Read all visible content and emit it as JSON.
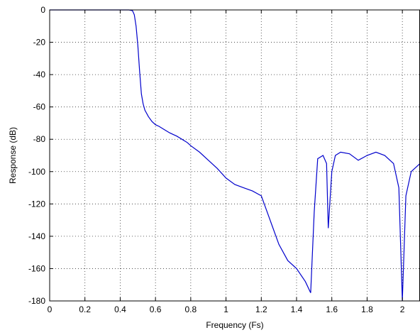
{
  "chart_data": {
    "type": "line",
    "title": "",
    "xlabel": "Frequency (Fs)",
    "ylabel": "Response (dB)",
    "xlim": [
      0,
      2.1
    ],
    "ylim": [
      -180,
      0
    ],
    "x_ticks": [
      0,
      0.2,
      0.4,
      0.6,
      0.8,
      1,
      1.2,
      1.4,
      1.6,
      1.8,
      2
    ],
    "x_tick_labels": [
      "0",
      "0.2",
      "0.4",
      "0.6",
      "0.8",
      "1",
      "1.2",
      "1.4",
      "1.6",
      "1.8",
      "2"
    ],
    "y_ticks": [
      0,
      -20,
      -40,
      -60,
      -80,
      -100,
      -120,
      -140,
      -160,
      -180
    ],
    "y_tick_labels": [
      "0",
      "-20",
      "-40",
      "-60",
      "-80",
      "-100",
      "-120",
      "-140",
      "-160",
      "-180"
    ],
    "grid": true,
    "line_color": "#0000cc",
    "series": [
      {
        "x": [
          0,
          0.1,
          0.2,
          0.3,
          0.4,
          0.45,
          0.47,
          0.48,
          0.49,
          0.5,
          0.51,
          0.52,
          0.53,
          0.54,
          0.56,
          0.58,
          0.6,
          0.62,
          0.65,
          0.68,
          0.7,
          0.72,
          0.75,
          0.78,
          0.8,
          0.85,
          0.9,
          0.95,
          1.0,
          1.05,
          1.1,
          1.15,
          1.2,
          1.25,
          1.3,
          1.35,
          1.4,
          1.45,
          1.48,
          1.5,
          1.52,
          1.55,
          1.57,
          1.58,
          1.6,
          1.62,
          1.65,
          1.7,
          1.75,
          1.8,
          1.85,
          1.9,
          1.95,
          1.98,
          2.0,
          2.02,
          2.05,
          2.1
        ],
        "y": [
          0,
          0,
          0,
          0,
          0,
          0,
          -0.5,
          -3,
          -10,
          -22,
          -38,
          -52,
          -58,
          -62,
          -66,
          -69,
          -71,
          -72,
          -74,
          -76,
          -77,
          -78,
          -80,
          -82,
          -84,
          -88,
          -93,
          -98,
          -104,
          -108,
          -110,
          -112,
          -115,
          -130,
          -145,
          -155,
          -160,
          -168,
          -175,
          -125,
          -92,
          -90,
          -95,
          -135,
          -100,
          -90,
          -88,
          -89,
          -93,
          -90,
          -88,
          -90,
          -95,
          -110,
          -180,
          -115,
          -100,
          -95
        ]
      }
    ]
  }
}
